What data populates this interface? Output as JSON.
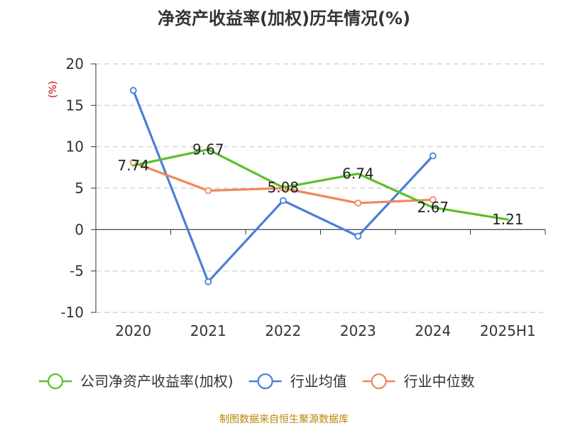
{
  "source_text": "制图数据来自恒生聚源数据库",
  "colors": {
    "company": "#5cbf2a",
    "industry_avg": "#4a7fd8",
    "industry_median": "#f0875a",
    "grid": "#cccccc",
    "axis": "#333333"
  },
  "chart_data": {
    "type": "line",
    "title": "净资产收益率(加权)历年情况(%)",
    "ylabel": "(%)",
    "xlabel": "",
    "categories": [
      "2020",
      "2021",
      "2022",
      "2023",
      "2024",
      "2025H1"
    ],
    "ylim": [
      -10,
      20
    ],
    "yticks": [
      -10,
      -5,
      0,
      5,
      10,
      15,
      20
    ],
    "grid": true,
    "legend_position": "bottom",
    "series": [
      {
        "name": "公司净资产收益率(加权)",
        "color": "#5cbf2a",
        "values": [
          7.74,
          9.67,
          5.08,
          6.74,
          2.67,
          1.21
        ],
        "labels": [
          "7.74",
          "9.67",
          "5.08",
          "6.74",
          "2.67",
          "1.21"
        ],
        "markers": false
      },
      {
        "name": "行业均值",
        "color": "#4a7fd8",
        "values": [
          16.8,
          -6.3,
          3.5,
          -0.8,
          8.9,
          null
        ],
        "markers": true
      },
      {
        "name": "行业中位数",
        "color": "#f0875a",
        "values": [
          8.1,
          4.7,
          5.0,
          3.2,
          3.6,
          null
        ],
        "markers": true
      }
    ]
  }
}
